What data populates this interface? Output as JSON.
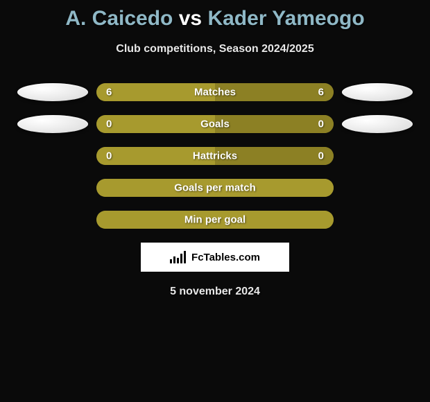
{
  "title": "A. Caicedo vs Kader Yameogo",
  "subtitle": "Club competitions, Season 2024/2025",
  "date": "5 november 2024",
  "logo_text": "FcTables.com",
  "colors": {
    "background": "#0a0a0a",
    "bar_olive": "#a79a2e",
    "bar_olive_dark": "#8c8024",
    "title_highlight": "#8fb8c6",
    "text": "#ffffff",
    "ellipse": "#ffffff"
  },
  "rows": [
    {
      "label": "Matches",
      "left_value": "6",
      "right_value": "6",
      "left_pct": 50,
      "left_color": "#a79a2e",
      "right_color": "#8c8024",
      "show_left_ellipse": true,
      "show_right_ellipse": true
    },
    {
      "label": "Goals",
      "left_value": "0",
      "right_value": "0",
      "left_pct": 50,
      "left_color": "#a79a2e",
      "right_color": "#8c8024",
      "show_left_ellipse": true,
      "show_right_ellipse": true
    },
    {
      "label": "Hattricks",
      "left_value": "0",
      "right_value": "0",
      "left_pct": 50,
      "left_color": "#a79a2e",
      "right_color": "#8c8024",
      "show_left_ellipse": false,
      "show_right_ellipse": false
    },
    {
      "label": "Goals per match",
      "left_value": "",
      "right_value": "",
      "left_pct": 100,
      "left_color": "#a79a2e",
      "right_color": "#a79a2e",
      "show_left_ellipse": false,
      "show_right_ellipse": false
    },
    {
      "label": "Min per goal",
      "left_value": "",
      "right_value": "",
      "left_pct": 100,
      "left_color": "#a79a2e",
      "right_color": "#a79a2e",
      "show_left_ellipse": false,
      "show_right_ellipse": false
    }
  ]
}
